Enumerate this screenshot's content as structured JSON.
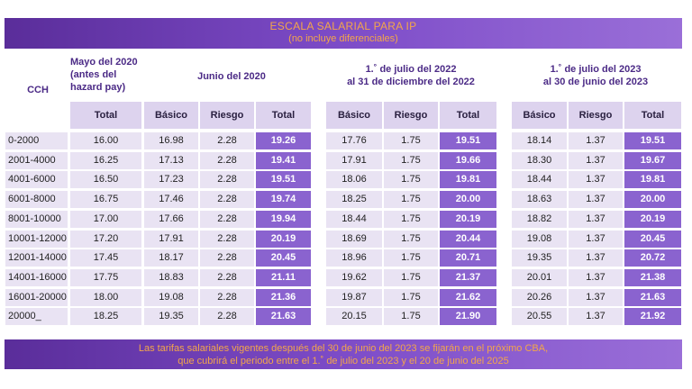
{
  "banner_top": {
    "title": "ESCALA SALARIAL PARA IP",
    "subtitle": "(no incluye diferenciales)"
  },
  "headers": {
    "cch": "CCH",
    "may2020": "Mayo del 2020\n(antes del\nhazard pay)",
    "jun2020": "Junio del 2020",
    "g2022": "1.˚ de julio del 2022\nal 31 de diciembre del 2022",
    "g2023": "1.˚ de julio del 2023\nal 30 de junio del 2023"
  },
  "subheaders": {
    "total": "Total",
    "basico": "Básico",
    "riesgo": "Riesgo"
  },
  "rows": [
    {
      "cch": "0-2000",
      "may": "16.00",
      "b20": "16.98",
      "r20": "2.28",
      "t20": "19.26",
      "b22": "17.76",
      "r22": "1.75",
      "t22": "19.51",
      "b23": "18.14",
      "r23": "1.37",
      "t23": "19.51"
    },
    {
      "cch": "2001-4000",
      "may": "16.25",
      "b20": "17.13",
      "r20": "2.28",
      "t20": "19.41",
      "b22": "17.91",
      "r22": "1.75",
      "t22": "19.66",
      "b23": "18.30",
      "r23": "1.37",
      "t23": "19.67"
    },
    {
      "cch": "4001-6000",
      "may": "16.50",
      "b20": "17.23",
      "r20": "2.28",
      "t20": "19.51",
      "b22": "18.06",
      "r22": "1.75",
      "t22": "19.81",
      "b23": "18.44",
      "r23": "1.37",
      "t23": "19.81"
    },
    {
      "cch": "6001-8000",
      "may": "16.75",
      "b20": "17.46",
      "r20": "2.28",
      "t20": "19.74",
      "b22": "18.25",
      "r22": "1.75",
      "t22": "20.00",
      "b23": "18.63",
      "r23": "1.37",
      "t23": "20.00"
    },
    {
      "cch": "8001-10000",
      "may": "17.00",
      "b20": "17.66",
      "r20": "2.28",
      "t20": "19.94",
      "b22": "18.44",
      "r22": "1.75",
      "t22": "20.19",
      "b23": "18.82",
      "r23": "1.37",
      "t23": "20.19"
    },
    {
      "cch": "10001-12000",
      "may": "17.20",
      "b20": "17.91",
      "r20": "2.28",
      "t20": "20.19",
      "b22": "18.69",
      "r22": "1.75",
      "t22": "20.44",
      "b23": "19.08",
      "r23": "1.37",
      "t23": "20.45"
    },
    {
      "cch": "12001-14000",
      "may": "17.45",
      "b20": "18.17",
      "r20": "2.28",
      "t20": "20.45",
      "b22": "18.96",
      "r22": "1.75",
      "t22": "20.71",
      "b23": "19.35",
      "r23": "1.37",
      "t23": "20.72"
    },
    {
      "cch": "14001-16000",
      "may": "17.75",
      "b20": "18.83",
      "r20": "2.28",
      "t20": "21.11",
      "b22": "19.62",
      "r22": "1.75",
      "t22": "21.37",
      "b23": "20.01",
      "r23": "1.37",
      "t23": "21.38"
    },
    {
      "cch": "16001-20000",
      "may": "18.00",
      "b20": "19.08",
      "r20": "2.28",
      "t20": "21.36",
      "b22": "19.87",
      "r22": "1.75",
      "t22": "21.62",
      "b23": "20.26",
      "r23": "1.37",
      "t23": "21.63"
    },
    {
      "cch": "20000_",
      "may": "18.25",
      "b20": "19.35",
      "r20": "2.28",
      "t20": "21.63",
      "b22": "20.15",
      "r22": "1.75",
      "t22": "21.90",
      "b23": "20.55",
      "r23": "1.37",
      "t23": "21.92"
    }
  ],
  "banner_bottom": {
    "line1": "Las tarifas salariales vigentes después del 30 de junio del 2023 se fijarán en el próximo CBA,",
    "line2": "que cubrirá el periodo entre el 1.˚ de julio del 2023 y el 20 de junio del 2025"
  },
  "colors": {
    "banner": "#7d4cc8",
    "banner_text": "#f3a64a",
    "header_text": "#4b2a86",
    "total_cell": "#8a63cf",
    "light_cell": "#e9e3f3"
  }
}
